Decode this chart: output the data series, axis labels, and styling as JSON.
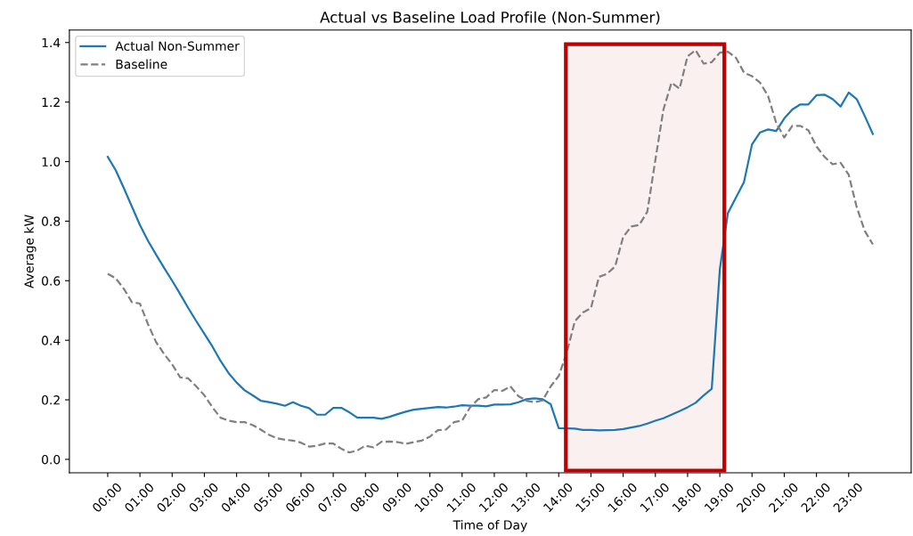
{
  "chart_data": {
    "type": "line",
    "title": "Actual vs Baseline Load Profile (Non-Summer)",
    "xlabel": "Time of Day",
    "ylabel": "Average kW",
    "x": [
      0,
      0.25,
      0.5,
      0.75,
      1,
      1.25,
      1.5,
      1.75,
      2,
      2.25,
      2.5,
      2.75,
      3,
      3.25,
      3.5,
      3.75,
      4,
      4.25,
      4.5,
      4.75,
      5,
      5.25,
      5.5,
      5.75,
      6,
      6.25,
      6.5,
      6.75,
      7,
      7.25,
      7.5,
      7.75,
      8,
      8.25,
      8.5,
      8.75,
      9,
      9.25,
      9.5,
      9.75,
      10,
      10.25,
      10.5,
      10.75,
      11,
      11.25,
      11.5,
      11.75,
      12,
      12.25,
      12.5,
      12.75,
      13,
      13.25,
      13.5,
      13.75,
      14,
      14.25,
      14.5,
      14.75,
      15,
      15.25,
      15.5,
      15.75,
      16,
      16.25,
      16.5,
      16.75,
      17,
      17.25,
      17.5,
      17.75,
      18,
      18.25,
      18.5,
      18.75,
      19,
      19.25,
      19.5,
      19.75,
      20,
      20.25,
      20.5,
      20.75,
      21,
      21.25,
      21.5,
      21.75,
      22,
      22.25,
      22.5,
      22.75,
      23,
      23.25,
      23.5,
      23.75
    ],
    "series": [
      {
        "name": "Actual Non-Summer",
        "color": "#1f77b4",
        "line_style": "solid",
        "values": [
          1.016,
          0.971,
          0.911,
          0.849,
          0.787,
          0.734,
          0.688,
          0.643,
          0.6,
          0.555,
          0.508,
          0.464,
          0.422,
          0.379,
          0.331,
          0.29,
          0.258,
          0.232,
          0.215,
          0.197,
          0.192,
          0.187,
          0.18,
          0.192,
          0.18,
          0.172,
          0.15,
          0.15,
          0.173,
          0.173,
          0.158,
          0.14,
          0.14,
          0.14,
          0.136,
          0.143,
          0.152,
          0.16,
          0.167,
          0.17,
          0.173,
          0.176,
          0.174,
          0.177,
          0.182,
          0.18,
          0.18,
          0.178,
          0.184,
          0.184,
          0.185,
          0.192,
          0.202,
          0.205,
          0.202,
          0.185,
          0.105,
          0.104,
          0.103,
          0.099,
          0.099,
          0.097,
          0.098,
          0.099,
          0.102,
          0.107,
          0.112,
          0.12,
          0.13,
          0.138,
          0.15,
          0.162,
          0.175,
          0.19,
          0.215,
          0.237,
          0.638,
          0.827,
          0.879,
          0.931,
          1.058,
          1.098,
          1.108,
          1.103,
          1.145,
          1.175,
          1.192,
          1.192,
          1.223,
          1.225,
          1.21,
          1.185,
          1.232,
          1.21,
          1.153,
          1.093
        ]
      },
      {
        "name": "Baseline",
        "color": "#808080",
        "line_style": "dashed",
        "values": [
          0.623,
          0.608,
          0.573,
          0.528,
          0.523,
          0.454,
          0.394,
          0.354,
          0.319,
          0.275,
          0.272,
          0.245,
          0.215,
          0.175,
          0.14,
          0.13,
          0.125,
          0.125,
          0.115,
          0.1,
          0.083,
          0.071,
          0.066,
          0.063,
          0.056,
          0.043,
          0.046,
          0.053,
          0.053,
          0.036,
          0.023,
          0.03,
          0.046,
          0.04,
          0.059,
          0.06,
          0.058,
          0.052,
          0.058,
          0.063,
          0.076,
          0.098,
          0.1,
          0.125,
          0.13,
          0.175,
          0.202,
          0.208,
          0.233,
          0.23,
          0.245,
          0.212,
          0.197,
          0.192,
          0.198,
          0.245,
          0.28,
          0.359,
          0.464,
          0.493,
          0.508,
          0.613,
          0.623,
          0.648,
          0.747,
          0.782,
          0.787,
          0.832,
          1.006,
          1.175,
          1.265,
          1.245,
          1.354,
          1.374,
          1.329,
          1.334,
          1.366,
          1.369,
          1.349,
          1.299,
          1.287,
          1.265,
          1.22,
          1.13,
          1.081,
          1.12,
          1.12,
          1.105,
          1.051,
          1.016,
          0.991,
          0.996,
          0.956,
          0.847,
          0.767,
          0.722
        ]
      }
    ],
    "xlim": [
      -1.19,
      24.94
    ],
    "xticks": [
      {
        "value": 0,
        "label": "00:00"
      },
      {
        "value": 1,
        "label": "01:00"
      },
      {
        "value": 2,
        "label": "02:00"
      },
      {
        "value": 3,
        "label": "03:00"
      },
      {
        "value": 4,
        "label": "04:00"
      },
      {
        "value": 5,
        "label": "05:00"
      },
      {
        "value": 6,
        "label": "06:00"
      },
      {
        "value": 7,
        "label": "07:00"
      },
      {
        "value": 8,
        "label": "08:00"
      },
      {
        "value": 9,
        "label": "09:00"
      },
      {
        "value": 10,
        "label": "10:00"
      },
      {
        "value": 11,
        "label": "11:00"
      },
      {
        "value": 12,
        "label": "12:00"
      },
      {
        "value": 13,
        "label": "13:00"
      },
      {
        "value": 14,
        "label": "14:00"
      },
      {
        "value": 15,
        "label": "15:00"
      },
      {
        "value": 16,
        "label": "16:00"
      },
      {
        "value": 17,
        "label": "17:00"
      },
      {
        "value": 18,
        "label": "18:00"
      },
      {
        "value": 19,
        "label": "19:00"
      },
      {
        "value": 20,
        "label": "20:00"
      },
      {
        "value": 21,
        "label": "21:00"
      },
      {
        "value": 22,
        "label": "22:00"
      },
      {
        "value": 23,
        "label": "23:00"
      }
    ],
    "ylim": [
      -0.045,
      1.442
    ],
    "yticks": [
      {
        "value": 0,
        "label": "0.0"
      },
      {
        "value": 0.2,
        "label": "0.2"
      },
      {
        "value": 0.4,
        "label": "0.4"
      },
      {
        "value": 0.6,
        "label": "0.6"
      },
      {
        "value": 0.8,
        "label": "0.8"
      },
      {
        "value": 1.0,
        "label": "1.0"
      },
      {
        "value": 1.2,
        "label": "1.2"
      },
      {
        "value": 1.4,
        "label": "1.4"
      }
    ],
    "bands": [
      {
        "axis": "x",
        "from": 14.22,
        "to": 19.14,
        "color": "#c00000"
      }
    ],
    "legend": "top left"
  }
}
